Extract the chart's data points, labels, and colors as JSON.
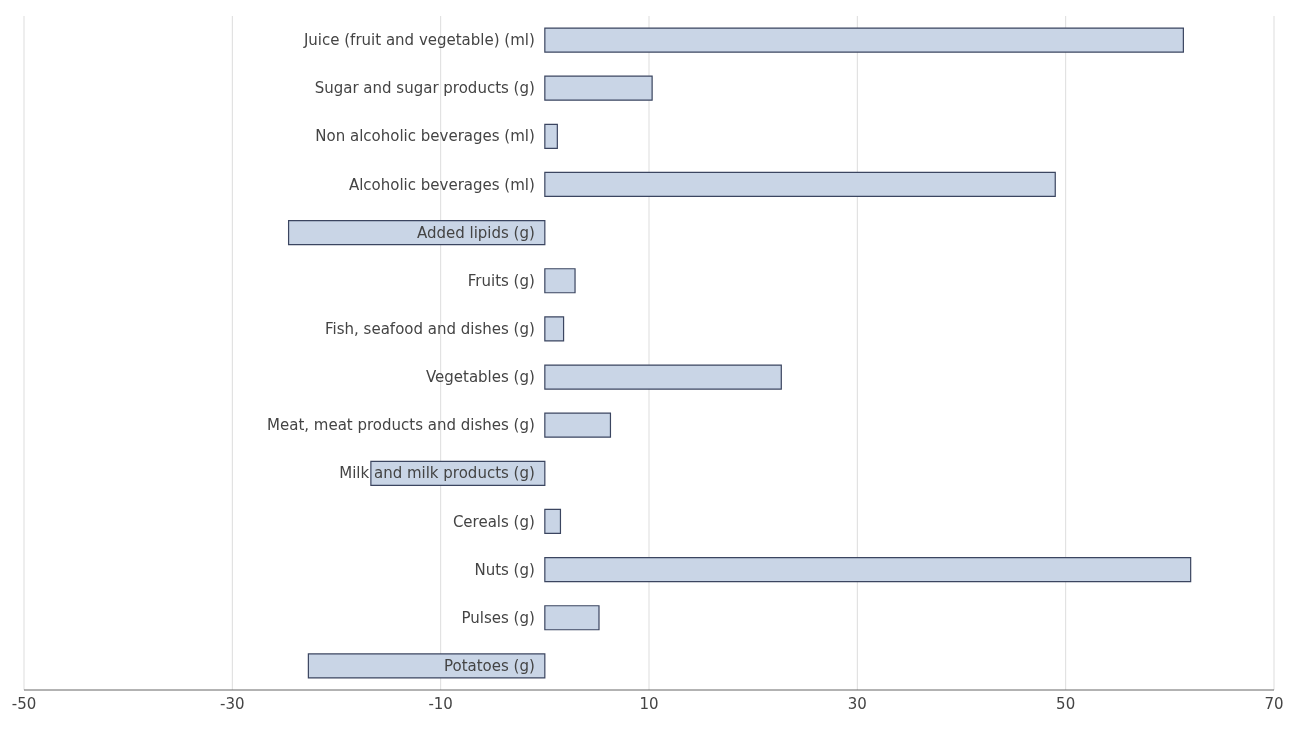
{
  "chart_data": {
    "type": "bar",
    "orientation": "horizontal",
    "categories": [
      "Juice (fruit and vegetable) (ml)",
      "Sugar and sugar products (g)",
      "Non alcoholic beverages (ml)",
      "Alcoholic beverages (ml)",
      "Added lipids (g)",
      "Fruits (g)",
      "Fish, seafood and dishes (g)",
      "Vegetables (g)",
      "Meat, meat products and dishes (g)",
      "Milk and milk products (g)",
      "Cereals (g)",
      "Nuts (g)",
      "Pulses (g)",
      "Potatoes (g)"
    ],
    "values": [
      61.3,
      10.3,
      1.2,
      49.0,
      -24.6,
      2.9,
      1.8,
      22.7,
      6.3,
      -16.7,
      1.5,
      62.0,
      5.2,
      -22.7
    ],
    "color": "#c9d5e6",
    "xlim": [
      -50,
      70
    ],
    "xticks": [
      -50,
      -30,
      -10,
      10,
      30,
      50,
      70
    ],
    "grid": "x"
  }
}
